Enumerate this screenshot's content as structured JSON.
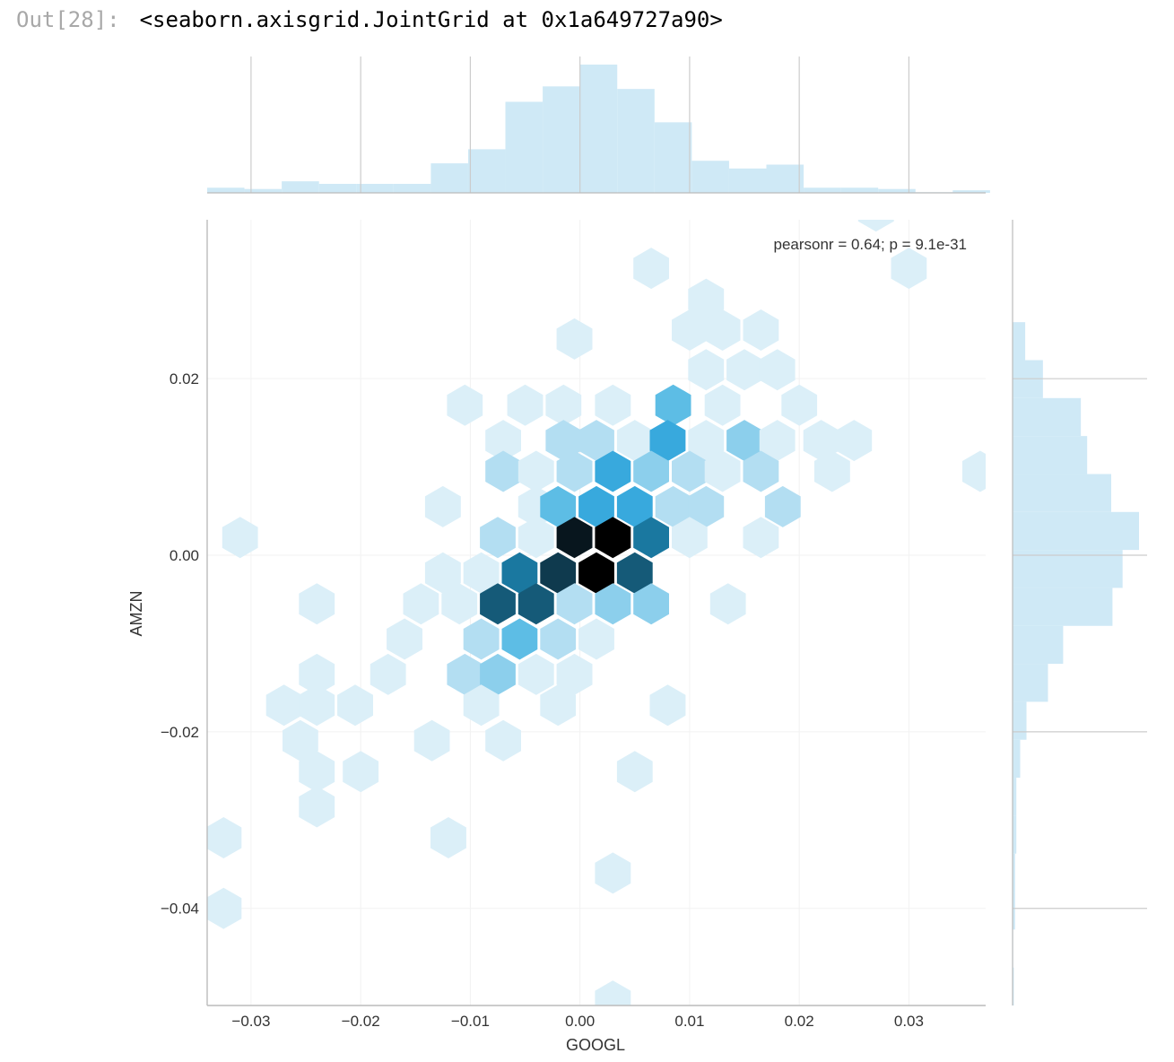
{
  "cell": {
    "prompt": "Out[28]:",
    "output_text": "<seaborn.axisgrid.JointGrid at 0x1a649727a90>"
  },
  "colors": {
    "hist_fill": "#cfe9f6",
    "hist_stroke": "#b9dcee",
    "grid": "#cccccc",
    "spine": "#bbbbbb",
    "hex_scale": [
      "#dbeff8",
      "#b3def2",
      "#8ccfec",
      "#5dbde5",
      "#38a9dd",
      "#1b93c8",
      "#1a78a0",
      "#155a78",
      "#0f3a4e",
      "#08161e",
      "#000000"
    ]
  },
  "chart_data": {
    "type": "hexbin-joint",
    "xlabel": "GOOGL",
    "ylabel": "AMZN",
    "xlim": [
      -0.034,
      0.037
    ],
    "ylim": [
      -0.051,
      0.038
    ],
    "xticks": [
      -0.03,
      -0.02,
      -0.01,
      0.0,
      0.01,
      0.02,
      0.03
    ],
    "xtick_labels": [
      "−0.03",
      "−0.02",
      "−0.01",
      "0.00",
      "0.01",
      "0.02",
      "0.03"
    ],
    "yticks": [
      -0.04,
      -0.02,
      0.0,
      0.02
    ],
    "ytick_labels": [
      "−0.04",
      "−0.02",
      "0.00",
      "0.02"
    ],
    "annotation": "pearsonr = 0.64; p = 9.1e-31",
    "grid": true,
    "hex_level_max": 10,
    "hexbins": [
      [
        0.027,
        0.039,
        1
      ],
      [
        0.0065,
        0.0325,
        1
      ],
      [
        0.03,
        0.0325,
        1
      ],
      [
        0.0115,
        0.029,
        1
      ],
      [
        -0.0005,
        0.0245,
        1
      ],
      [
        0.01,
        0.0255,
        1
      ],
      [
        0.013,
        0.0255,
        1
      ],
      [
        0.0165,
        0.0255,
        1
      ],
      [
        0.0115,
        0.021,
        1
      ],
      [
        0.015,
        0.021,
        1
      ],
      [
        0.018,
        0.021,
        1
      ],
      [
        -0.0105,
        0.017,
        1
      ],
      [
        -0.005,
        0.017,
        1
      ],
      [
        -0.0015,
        0.017,
        1
      ],
      [
        0.003,
        0.017,
        1
      ],
      [
        0.0085,
        0.017,
        4
      ],
      [
        0.013,
        0.017,
        1
      ],
      [
        0.02,
        0.017,
        1
      ],
      [
        -0.007,
        0.013,
        1
      ],
      [
        -0.0015,
        0.013,
        2
      ],
      [
        0.0015,
        0.013,
        2
      ],
      [
        0.005,
        0.013,
        1
      ],
      [
        0.008,
        0.013,
        5
      ],
      [
        0.0115,
        0.013,
        1
      ],
      [
        0.015,
        0.013,
        3
      ],
      [
        0.018,
        0.013,
        1
      ],
      [
        0.022,
        0.013,
        1
      ],
      [
        0.025,
        0.013,
        1
      ],
      [
        -0.007,
        0.0095,
        2
      ],
      [
        -0.004,
        0.0095,
        1
      ],
      [
        -0.0005,
        0.0095,
        2
      ],
      [
        0.003,
        0.0095,
        5
      ],
      [
        0.0065,
        0.0095,
        3
      ],
      [
        0.01,
        0.0095,
        2
      ],
      [
        0.013,
        0.0095,
        1
      ],
      [
        0.0165,
        0.0095,
        2
      ],
      [
        0.023,
        0.0095,
        1
      ],
      [
        0.0365,
        0.0095,
        1
      ],
      [
        -0.0125,
        0.0055,
        1
      ],
      [
        -0.004,
        0.0055,
        1
      ],
      [
        -0.002,
        0.0055,
        4
      ],
      [
        0.0015,
        0.0055,
        5
      ],
      [
        0.005,
        0.0055,
        5
      ],
      [
        0.0085,
        0.0055,
        2
      ],
      [
        0.0115,
        0.0055,
        2
      ],
      [
        0.0185,
        0.0055,
        2
      ],
      [
        -0.031,
        0.002,
        1
      ],
      [
        -0.0075,
        0.002,
        2
      ],
      [
        -0.004,
        0.002,
        1
      ],
      [
        -0.0005,
        0.002,
        9
      ],
      [
        0.003,
        0.002,
        10
      ],
      [
        0.0065,
        0.002,
        6
      ],
      [
        0.01,
        0.002,
        1
      ],
      [
        0.0165,
        0.002,
        1
      ],
      [
        -0.0125,
        -0.002,
        1
      ],
      [
        -0.009,
        -0.002,
        1
      ],
      [
        -0.0055,
        -0.002,
        6
      ],
      [
        -0.002,
        -0.002,
        8
      ],
      [
        0.0015,
        -0.002,
        10
      ],
      [
        0.005,
        -0.002,
        7
      ],
      [
        -0.024,
        -0.0055,
        1
      ],
      [
        -0.0145,
        -0.0055,
        1
      ],
      [
        -0.011,
        -0.0055,
        1
      ],
      [
        -0.0075,
        -0.0055,
        7
      ],
      [
        -0.004,
        -0.0055,
        7
      ],
      [
        -0.0005,
        -0.0055,
        2
      ],
      [
        0.003,
        -0.0055,
        3
      ],
      [
        0.0065,
        -0.0055,
        3
      ],
      [
        0.0135,
        -0.0055,
        1
      ],
      [
        -0.016,
        -0.0095,
        1
      ],
      [
        -0.009,
        -0.0095,
        2
      ],
      [
        -0.0055,
        -0.0095,
        4
      ],
      [
        -0.002,
        -0.0095,
        2
      ],
      [
        0.0015,
        -0.0095,
        1
      ],
      [
        -0.024,
        -0.0135,
        1
      ],
      [
        -0.0175,
        -0.0135,
        1
      ],
      [
        -0.0105,
        -0.0135,
        2
      ],
      [
        -0.0075,
        -0.0135,
        3
      ],
      [
        -0.004,
        -0.0135,
        1
      ],
      [
        -0.0005,
        -0.0135,
        1
      ],
      [
        -0.027,
        -0.017,
        1
      ],
      [
        -0.024,
        -0.017,
        1
      ],
      [
        -0.0205,
        -0.017,
        1
      ],
      [
        -0.009,
        -0.017,
        1
      ],
      [
        -0.002,
        -0.017,
        1
      ],
      [
        0.008,
        -0.017,
        1
      ],
      [
        -0.0255,
        -0.021,
        1
      ],
      [
        -0.0135,
        -0.021,
        1
      ],
      [
        -0.007,
        -0.021,
        1
      ],
      [
        -0.024,
        -0.0245,
        1
      ],
      [
        -0.02,
        -0.0245,
        1
      ],
      [
        0.005,
        -0.0245,
        1
      ],
      [
        -0.024,
        -0.0285,
        1
      ],
      [
        -0.0325,
        -0.032,
        1
      ],
      [
        -0.012,
        -0.032,
        1
      ],
      [
        0.003,
        -0.036,
        1
      ],
      [
        -0.0325,
        -0.04,
        1
      ],
      [
        0.003,
        -0.0505,
        1
      ]
    ],
    "x_marginal": {
      "bin_edges": [
        -0.034,
        -0.0306,
        -0.0272,
        -0.0238,
        -0.0204,
        -0.017,
        -0.0136,
        -0.0102,
        -0.0068,
        -0.0034,
        0.0,
        0.0034,
        0.0068,
        0.0102,
        0.0136,
        0.017,
        0.0204,
        0.0238,
        0.0272,
        0.0306,
        0.034,
        0.0374
      ],
      "heights": [
        4,
        3,
        9,
        7,
        7,
        7,
        23,
        34,
        71,
        83,
        100,
        81,
        55,
        25,
        19,
        22,
        4,
        4,
        3,
        0.5,
        2
      ]
    },
    "y_marginal": {
      "bin_edges": [
        -0.051,
        -0.0467,
        -0.0424,
        -0.0381,
        -0.0338,
        -0.0295,
        -0.0252,
        -0.0209,
        -0.0166,
        -0.0123,
        -0.008,
        -0.0037,
        0.0006,
        0.0049,
        0.0092,
        0.0135,
        0.0178,
        0.0221,
        0.0264
      ],
      "heights": [
        1,
        0.5,
        2,
        2,
        3,
        3,
        6,
        11,
        28,
        40,
        79,
        87,
        100,
        78,
        59,
        54,
        24,
        10
      ]
    }
  }
}
